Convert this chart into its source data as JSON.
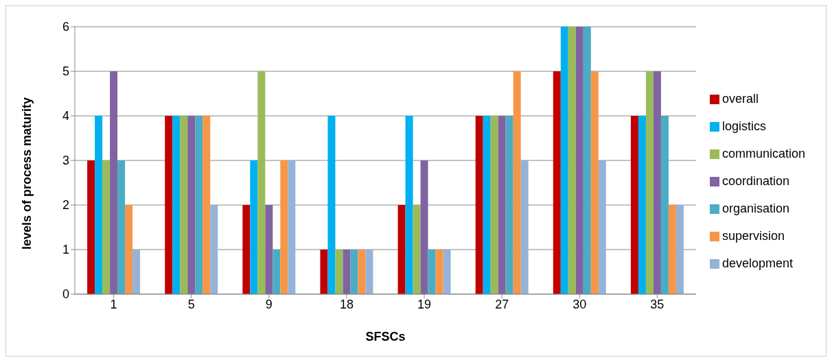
{
  "chart_data": {
    "type": "bar",
    "xlabel": "SFSCs",
    "ylabel": "levels of process maturity",
    "categories": [
      "1",
      "5",
      "9",
      "18",
      "19",
      "27",
      "30",
      "35"
    ],
    "series": [
      {
        "name": "overall",
        "color": "#c00000",
        "values": [
          3,
          4,
          2,
          1,
          2,
          4,
          5,
          4
        ]
      },
      {
        "name": "logistics",
        "color": "#00b0f0",
        "values": [
          4,
          4,
          3,
          4,
          4,
          4,
          6,
          4
        ]
      },
      {
        "name": "communication",
        "color": "#9bbb59",
        "values": [
          3,
          4,
          5,
          1,
          2,
          4,
          6,
          5
        ]
      },
      {
        "name": "coordination",
        "color": "#8064a2",
        "values": [
          5,
          4,
          2,
          1,
          3,
          4,
          6,
          5
        ]
      },
      {
        "name": "organisation",
        "color": "#4bacc6",
        "values": [
          3,
          4,
          1,
          1,
          1,
          4,
          6,
          4
        ]
      },
      {
        "name": "supervision",
        "color": "#f79646",
        "values": [
          2,
          4,
          3,
          1,
          1,
          5,
          5,
          2
        ]
      },
      {
        "name": "development",
        "color": "#95b3d7",
        "values": [
          1,
          2,
          3,
          1,
          1,
          3,
          3,
          2
        ]
      }
    ],
    "ylim": [
      0,
      6
    ],
    "yticks": [
      0,
      1,
      2,
      3,
      4,
      5,
      6
    ],
    "grid": "y",
    "legend": "right"
  }
}
